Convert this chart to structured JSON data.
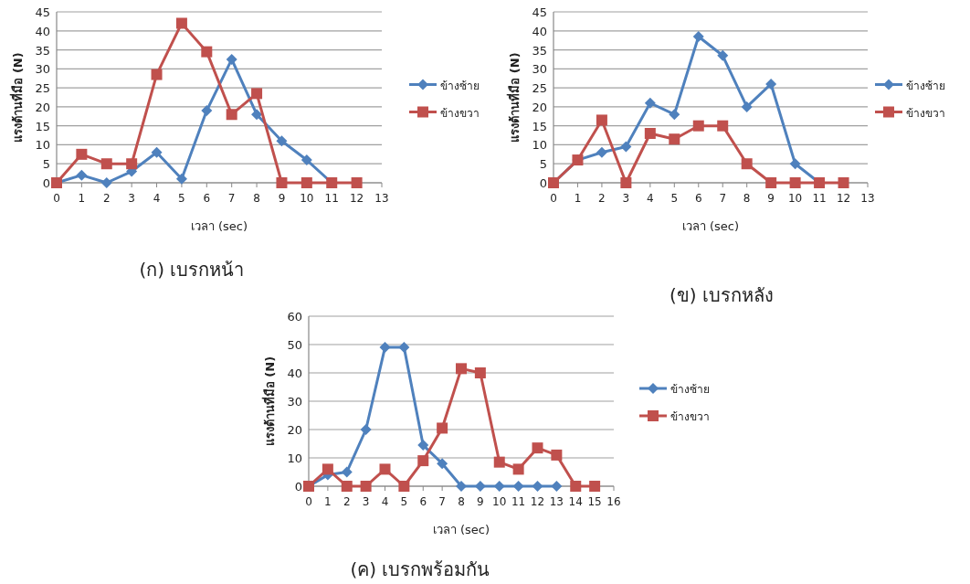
{
  "chart_data": [
    {
      "type": "line",
      "title": "(ก) เบรกหน้า",
      "xlabel": "เวลา (sec)",
      "ylabel": "แรงต้านที่มือ (N)",
      "xlim": [
        0,
        13
      ],
      "xticks": [
        0,
        1,
        2,
        3,
        4,
        5,
        6,
        7,
        8,
        9,
        10,
        11,
        12,
        13
      ],
      "ylim": [
        0,
        45
      ],
      "yticks": [
        0,
        5,
        10,
        15,
        20,
        25,
        30,
        35,
        40,
        45
      ],
      "grid": "y",
      "legend": "right",
      "series": [
        {
          "name": "ข้างซ้าย",
          "color": "#4f81bd",
          "marker": "diamond",
          "x": [
            0,
            1,
            2,
            3,
            4,
            5,
            6,
            7,
            8,
            9,
            10,
            11
          ],
          "values": [
            0,
            2,
            0,
            3,
            8,
            1,
            19,
            32.5,
            18,
            11,
            6,
            0
          ]
        },
        {
          "name": "ข้างขวา",
          "color": "#c0504d",
          "marker": "square",
          "x": [
            0,
            1,
            2,
            3,
            4,
            5,
            6,
            7,
            8,
            9,
            10,
            11,
            12
          ],
          "values": [
            0,
            7.5,
            5,
            5,
            28.5,
            42,
            34.5,
            18,
            23.5,
            0,
            0,
            0,
            0
          ]
        }
      ]
    },
    {
      "type": "line",
      "title": "(ข) เบรกหลัง",
      "xlabel": "เวลา (sec)",
      "ylabel": "แรงต้านที่มือ (N)",
      "xlim": [
        0,
        13
      ],
      "xticks": [
        0,
        1,
        2,
        3,
        4,
        5,
        6,
        7,
        8,
        9,
        10,
        11,
        12,
        13
      ],
      "ylim": [
        0,
        45
      ],
      "yticks": [
        0,
        5,
        10,
        15,
        20,
        25,
        30,
        35,
        40,
        45
      ],
      "grid": "y",
      "legend": "right",
      "series": [
        {
          "name": "ข้างซ้าย",
          "color": "#4f81bd",
          "marker": "diamond",
          "x": [
            0,
            1,
            2,
            3,
            4,
            5,
            6,
            7,
            8,
            9,
            10,
            11
          ],
          "values": [
            0,
            6,
            8,
            9.5,
            21,
            18,
            38.5,
            33.5,
            20,
            26,
            5,
            0
          ]
        },
        {
          "name": "ข้างขวา",
          "color": "#c0504d",
          "marker": "square",
          "x": [
            0,
            1,
            2,
            3,
            4,
            5,
            6,
            7,
            8,
            9,
            10,
            11,
            12
          ],
          "values": [
            0,
            6,
            16.5,
            0,
            13,
            11.5,
            15,
            15,
            5,
            0,
            0,
            0,
            0
          ]
        }
      ]
    },
    {
      "type": "line",
      "title": "(ค) เบรกพร้อมกัน",
      "xlabel": "เวลา (sec)",
      "ylabel": "แรงต้านที่มือ (N)",
      "xlim": [
        0,
        16
      ],
      "xticks": [
        0,
        1,
        2,
        3,
        4,
        5,
        6,
        7,
        8,
        9,
        10,
        11,
        12,
        13,
        14,
        15,
        16
      ],
      "ylim": [
        0,
        60
      ],
      "yticks": [
        0,
        10,
        20,
        30,
        40,
        50,
        60
      ],
      "grid": "y",
      "legend": "right",
      "series": [
        {
          "name": "ข้างซ้าย",
          "color": "#4f81bd",
          "marker": "diamond",
          "x": [
            0,
            1,
            2,
            3,
            4,
            5,
            6,
            7,
            8,
            9,
            10,
            11,
            12,
            13
          ],
          "values": [
            0,
            4,
            5,
            20,
            49,
            49,
            14.5,
            8,
            0,
            0,
            0,
            0,
            0,
            0
          ]
        },
        {
          "name": "ข้างขวา",
          "color": "#c0504d",
          "marker": "square",
          "x": [
            0,
            1,
            2,
            3,
            4,
            5,
            6,
            7,
            8,
            9,
            10,
            11,
            12,
            13,
            14,
            15
          ],
          "values": [
            0,
            6,
            0,
            0,
            6,
            0,
            9,
            20.5,
            41.5,
            40,
            8.5,
            6,
            13.5,
            11,
            0,
            0
          ]
        }
      ]
    }
  ]
}
